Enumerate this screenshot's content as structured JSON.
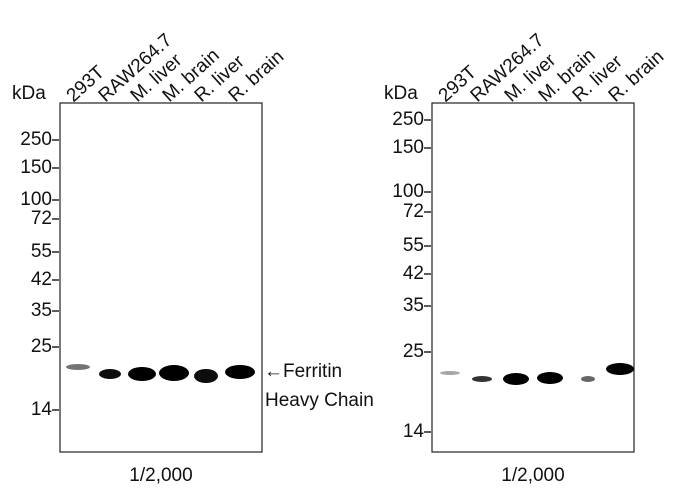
{
  "panels": [
    {
      "unit": "kDa",
      "lanes": [
        "293T",
        "RAW264.7",
        "M. liver",
        "M. brain",
        "R. liver",
        "R. brain"
      ],
      "markers": [
        "250",
        "150",
        "100",
        "72",
        "55",
        "42",
        "35",
        "25",
        "14"
      ],
      "dilution": "1/2,000"
    },
    {
      "unit": "kDa",
      "lanes": [
        "293T",
        "RAW264.7",
        "M. liver",
        "M. brain",
        "R. liver",
        "R. brain"
      ],
      "markers": [
        "250",
        "150",
        "100",
        "72",
        "55",
        "42",
        "35",
        "25",
        "14"
      ],
      "dilution": "1/2,000"
    }
  ],
  "annotation": {
    "line1": "←Ferritin",
    "line2": "Heavy Chain"
  }
}
